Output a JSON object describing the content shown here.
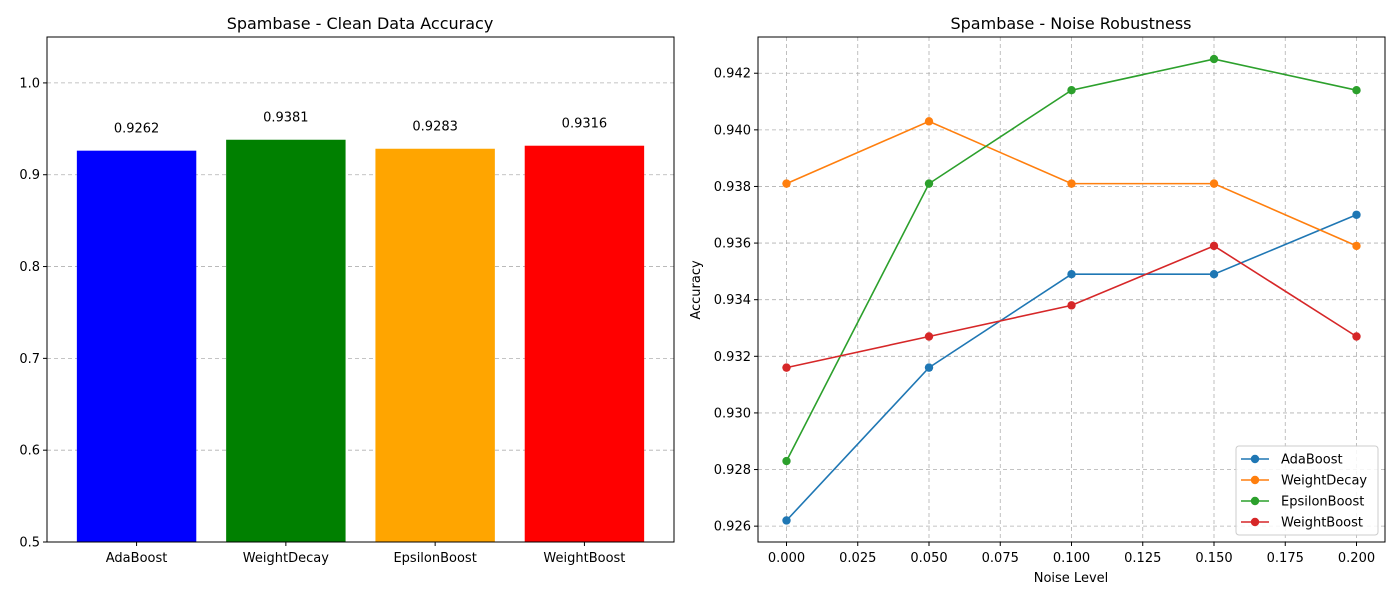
{
  "chart_data": [
    {
      "type": "bar",
      "title": "Spambase - Clean Data Accuracy",
      "xlabel": "",
      "ylabel": "",
      "categories": [
        "AdaBoost",
        "WeightDecay",
        "EpsilonBoost",
        "WeightBoost"
      ],
      "values": [
        0.9262,
        0.9381,
        0.9283,
        0.9316
      ],
      "value_labels": [
        "0.9262",
        "0.9381",
        "0.9283",
        "0.9316"
      ],
      "colors": [
        "#0000ff",
        "#008000",
        "#ffa500",
        "#ff0000"
      ],
      "ylim": [
        0.5,
        1.05
      ],
      "yticks": [
        0.5,
        0.6,
        0.7,
        0.8,
        0.9,
        1.0
      ],
      "ytick_labels": [
        "0.5",
        "0.6",
        "0.7",
        "0.8",
        "0.9",
        "1.0"
      ],
      "grid": "y"
    },
    {
      "type": "line",
      "title": "Spambase - Noise Robustness",
      "xlabel": "Noise Level",
      "ylabel": "Accuracy",
      "x": [
        0.0,
        0.05,
        0.1,
        0.15,
        0.2
      ],
      "xlim": [
        -0.01,
        0.21
      ],
      "ylim": [
        0.92544,
        0.94328
      ],
      "xticks": [
        0.0,
        0.025,
        0.05,
        0.075,
        0.1,
        0.125,
        0.15,
        0.175,
        0.2
      ],
      "xtick_labels": [
        "0.000",
        "0.025",
        "0.050",
        "0.075",
        "0.100",
        "0.125",
        "0.150",
        "0.175",
        "0.200"
      ],
      "yticks": [
        0.926,
        0.928,
        0.93,
        0.932,
        0.934,
        0.936,
        0.938,
        0.94,
        0.942
      ],
      "ytick_labels": [
        "0.926",
        "0.928",
        "0.930",
        "0.932",
        "0.934",
        "0.936",
        "0.938",
        "0.940",
        "0.942"
      ],
      "grid": "both",
      "legend_position": "lower-right",
      "series": [
        {
          "name": "AdaBoost",
          "color": "#1f77b4",
          "values": [
            0.9262,
            0.9316,
            0.9349,
            0.9349,
            0.937
          ]
        },
        {
          "name": "WeightDecay",
          "color": "#ff7f0e",
          "values": [
            0.9381,
            0.9403,
            0.9381,
            0.9381,
            0.9359
          ]
        },
        {
          "name": "EpsilonBoost",
          "color": "#2ca02c",
          "values": [
            0.9283,
            0.9381,
            0.9414,
            0.9425,
            0.9414
          ]
        },
        {
          "name": "WeightBoost",
          "color": "#d62728",
          "values": [
            0.9316,
            0.9327,
            0.9338,
            0.9359,
            0.9327
          ]
        }
      ]
    }
  ]
}
